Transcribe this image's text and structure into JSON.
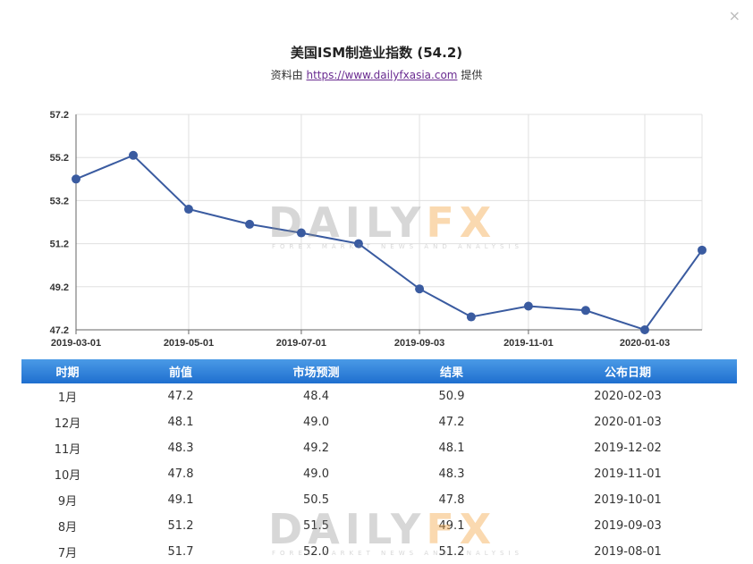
{
  "dialog": {
    "close_label": "×"
  },
  "header": {
    "title": "美国ISM制造业指数 (54.2)",
    "subtitle_prefix": "资料由",
    "subtitle_link": "https://www.dailyfxasia.com",
    "subtitle_suffix": "提供"
  },
  "watermark": {
    "brand_a": "DAILY",
    "brand_b": "FX",
    "tagline": "FOREX MARKET NEWS AND ANALYSIS"
  },
  "chart_data": {
    "type": "line",
    "title": "美国ISM制造业指数 (54.2)",
    "xlabel": "",
    "ylabel": "",
    "x": [
      "2019-03-01",
      "2019-04-01",
      "2019-05-01",
      "2019-06-03",
      "2019-07-01",
      "2019-08-01",
      "2019-09-03",
      "2019-10-01",
      "2019-11-01",
      "2019-12-02",
      "2020-01-03",
      "2020-02-03"
    ],
    "x_ticks": [
      "2019-03-01",
      "2019-05-01",
      "2019-07-01",
      "2019-09-03",
      "2019-11-01",
      "2020-01-03"
    ],
    "values": [
      54.2,
      55.3,
      52.8,
      52.1,
      51.7,
      51.2,
      49.1,
      47.8,
      48.3,
      48.1,
      47.2,
      50.9
    ],
    "y_ticks": [
      "47.2",
      "49.2",
      "51.2",
      "53.2",
      "55.2",
      "57.2"
    ],
    "ylim": [
      47.2,
      57.2
    ],
    "grid": true,
    "color": "#3a5ba0"
  },
  "table": {
    "headers": [
      "时期",
      "前值",
      "市场预测",
      "结果",
      "公布日期"
    ],
    "rows": [
      [
        "1月",
        "47.2",
        "48.4",
        "50.9",
        "2020-02-03"
      ],
      [
        "12月",
        "48.1",
        "49.0",
        "47.2",
        "2020-01-03"
      ],
      [
        "11月",
        "48.3",
        "49.2",
        "48.1",
        "2019-12-02"
      ],
      [
        "10月",
        "47.8",
        "49.0",
        "48.3",
        "2019-11-01"
      ],
      [
        "9月",
        "49.1",
        "50.5",
        "47.8",
        "2019-10-01"
      ],
      [
        "8月",
        "51.2",
        "51.5",
        "49.1",
        "2019-09-03"
      ],
      [
        "7月",
        "51.7",
        "52.0",
        "51.2",
        "2019-08-01"
      ]
    ]
  }
}
